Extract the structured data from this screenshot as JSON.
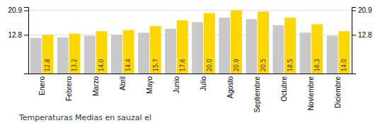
{
  "chart_data": {
    "type": "bar",
    "title": "Temperaturas Medias en sauzal el",
    "categories": [
      "Enero",
      "Febrero",
      "Marzo",
      "Abril",
      "Mayo",
      "Junio",
      "Julio",
      "Agosto",
      "Septiembre",
      "Octubre",
      "Noviembre",
      "Diciembre"
    ],
    "series": [
      {
        "color": "#C8C8C8",
        "values": [
          11.8,
          12.0,
          12.5,
          12.8,
          13.5,
          14.8,
          17.0,
          18.5,
          18.0,
          16.0,
          13.5,
          12.5
        ]
      },
      {
        "color": "#FFD700",
        "values": [
          12.8,
          13.2,
          14.0,
          14.4,
          15.7,
          17.6,
          20.0,
          20.9,
          20.5,
          18.5,
          16.3,
          14.0
        ],
        "value_labels": [
          "12.8",
          "13.2",
          "14.0",
          "14.4",
          "15.7",
          "17.6",
          "20.0",
          "20.9",
          "20.5",
          "18.5",
          "16.3",
          "14.0"
        ],
        "data_labels": true
      }
    ],
    "ylim": [
      0,
      22.0
    ],
    "yticks": [
      12.8,
      20.9
    ],
    "grid": true
  }
}
